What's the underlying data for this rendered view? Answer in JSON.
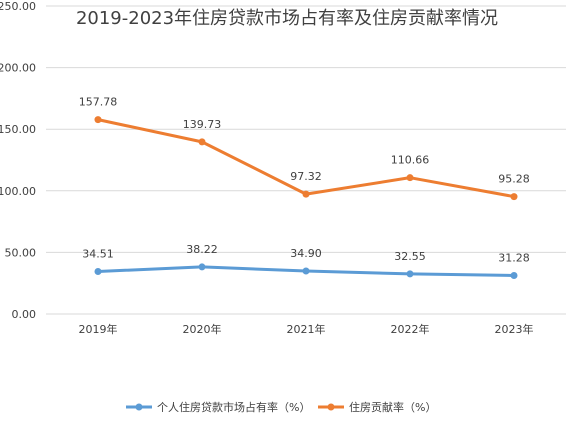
{
  "chart_data": {
    "type": "line",
    "title": "2019-2023年住房贷款市场占有率及住房贡献率情况",
    "categories": [
      "2019年",
      "2020年",
      "2021年",
      "2022年",
      "2023年"
    ],
    "series": [
      {
        "name": "个人住房贷款市场占有率（%）",
        "values": [
          34.51,
          38.22,
          34.9,
          32.55,
          31.28
        ],
        "labels": [
          "34.51",
          "38.22",
          "34.90",
          "32.55",
          "31.28"
        ],
        "color": "#5b9bd5"
      },
      {
        "name": "住房贡献率（%）",
        "values": [
          157.78,
          139.73,
          97.32,
          110.66,
          95.28
        ],
        "labels": [
          "157.78",
          "139.73",
          "97.32",
          "110.66",
          "95.28"
        ],
        "color": "#ed7d31"
      }
    ],
    "ylim": [
      0,
      250
    ],
    "yticks": [
      "0.00",
      "50.00",
      "100.00",
      "150.00",
      "200.00",
      "250.00"
    ],
    "grid": true,
    "legend_position": "bottom"
  }
}
